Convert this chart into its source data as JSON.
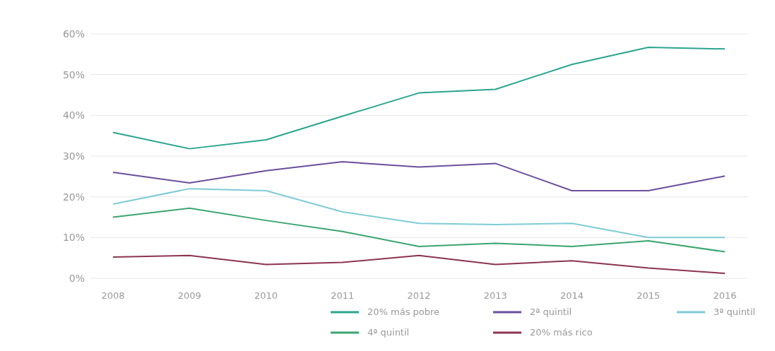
{
  "chart_data": {
    "type": "line",
    "categories": [
      "2008",
      "2009",
      "2010",
      "2011",
      "2012",
      "2013",
      "2014",
      "2015",
      "2016"
    ],
    "series": [
      {
        "name": "20% más pobre",
        "color": "#2aa58f",
        "values": [
          35.8,
          31.8,
          34,
          39.8,
          45.5,
          46.4,
          52.5,
          56.7,
          56.3
        ]
      },
      {
        "name": "2ª quintil",
        "color": "#6a4f9c",
        "values": [
          26,
          23.4,
          26.4,
          28.6,
          27.3,
          28.2,
          21.5,
          21.5,
          25.1
        ]
      },
      {
        "name": "3ª quintil",
        "color": "#7fcbd6",
        "values": [
          18.2,
          22,
          21.5,
          16.3,
          13.5,
          13.2,
          13.5,
          10,
          10
        ]
      },
      {
        "name": "4ª quintil",
        "color": "#3aa570",
        "values": [
          15,
          17.2,
          14.2,
          11.5,
          7.8,
          8.6,
          7.8,
          9.2,
          6.5
        ]
      },
      {
        "name": "20% más rico",
        "color": "#8c3450",
        "values": [
          5.2,
          5.6,
          3.4,
          3.9,
          5.6,
          3.4,
          4.3,
          2.5,
          1.2
        ]
      }
    ],
    "ylim": [
      0,
      60
    ],
    "yticks": [
      {
        "value": 0,
        "label": "0%"
      },
      {
        "value": 10,
        "label": "10%"
      },
      {
        "value": 20,
        "label": "20%"
      },
      {
        "value": 30,
        "label": "30%"
      },
      {
        "value": 40,
        "label": "40%"
      },
      {
        "value": 50,
        "label": "50%"
      },
      {
        "value": 60,
        "label": "60%"
      }
    ],
    "grid": "y",
    "legend": "bottom",
    "marker": "none",
    "line_style": "solid"
  }
}
